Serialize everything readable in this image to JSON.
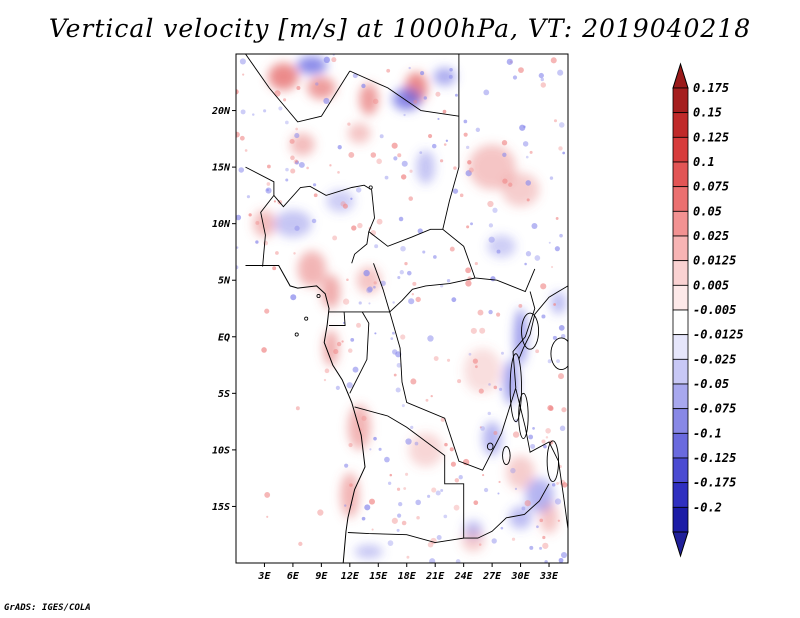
{
  "title": "Vertical velocity [m/s] at 1000hPa, VT: 2019040218",
  "credit": "GrADS: IGES/COLA",
  "map": {
    "lon_range": [
      0,
      35
    ],
    "lat_range": [
      -20,
      25
    ],
    "lon_ticks": [
      {
        "value": 3,
        "label": "3E"
      },
      {
        "value": 6,
        "label": "6E"
      },
      {
        "value": 9,
        "label": "9E"
      },
      {
        "value": 12,
        "label": "12E"
      },
      {
        "value": 15,
        "label": "15E"
      },
      {
        "value": 18,
        "label": "18E"
      },
      {
        "value": 21,
        "label": "21E"
      },
      {
        "value": 24,
        "label": "24E"
      },
      {
        "value": 27,
        "label": "27E"
      },
      {
        "value": 30,
        "label": "30E"
      },
      {
        "value": 33,
        "label": "33E"
      }
    ],
    "lat_ticks": [
      {
        "value": 20,
        "label": "20N"
      },
      {
        "value": 15,
        "label": "15N"
      },
      {
        "value": 10,
        "label": "10N"
      },
      {
        "value": 5,
        "label": "5N"
      },
      {
        "value": 0,
        "label": "EQ"
      },
      {
        "value": -5,
        "label": "5S"
      },
      {
        "value": -10,
        "label": "10S"
      },
      {
        "value": -15,
        "label": "15S"
      }
    ]
  },
  "colorbar": {
    "bins": [
      {
        "label": "0.175",
        "color": "#a51e1e"
      },
      {
        "label": "0.15",
        "color": "#c02a2a"
      },
      {
        "label": "0.125",
        "color": "#d73c3c"
      },
      {
        "label": "0.1",
        "color": "#e25555"
      },
      {
        "label": "0.075",
        "color": "#eb7070"
      },
      {
        "label": "0.05",
        "color": "#f29292"
      },
      {
        "label": "0.025",
        "color": "#f7b4b4"
      },
      {
        "label": "0.0125",
        "color": "#fad2d2"
      },
      {
        "label": "0.005",
        "color": "#fde9e9"
      },
      {
        "label": "-0.005",
        "color": "#ffffff"
      },
      {
        "label": "-0.0125",
        "color": "#e6e6fb"
      },
      {
        "label": "-0.025",
        "color": "#c8c8f5"
      },
      {
        "label": "-0.05",
        "color": "#a8a8ee"
      },
      {
        "label": "-0.075",
        "color": "#8888e6"
      },
      {
        "label": "-0.1",
        "color": "#6a6ade"
      },
      {
        "label": "-0.125",
        "color": "#4b4bd2"
      },
      {
        "label": "-0.175",
        "color": "#3030c0"
      },
      {
        "label": "-0.2",
        "color": "#1c1ca6"
      }
    ],
    "top_triangle_color": "#9a1a1a",
    "bottom_triangle_color": "#20209a"
  },
  "features": {
    "red_patches": [
      [
        5,
        23,
        1.6,
        1.2,
        0.7
      ],
      [
        9,
        22,
        1.5,
        1.0,
        0.6
      ],
      [
        14,
        21,
        1.0,
        1.4,
        0.6
      ],
      [
        19,
        22,
        1.2,
        1.4,
        0.7
      ],
      [
        7,
        17,
        1.3,
        1.0,
        0.4
      ],
      [
        13,
        18,
        1.2,
        0.9,
        0.35
      ],
      [
        27,
        15,
        2.5,
        2.0,
        0.35
      ],
      [
        30,
        13,
        2.0,
        1.5,
        0.3
      ],
      [
        3,
        10,
        1.2,
        1.2,
        0.4
      ],
      [
        8,
        6,
        1.5,
        1.6,
        0.45
      ],
      [
        10,
        4,
        1.0,
        1.5,
        0.5
      ],
      [
        14,
        5,
        1.3,
        1.2,
        0.35
      ],
      [
        10,
        -1,
        0.8,
        1.6,
        0.5
      ],
      [
        13,
        -8,
        1.2,
        2.0,
        0.45
      ],
      [
        12,
        -14,
        1.0,
        2.0,
        0.45
      ],
      [
        20,
        -10,
        1.8,
        1.5,
        0.25
      ],
      [
        26,
        -3,
        2.0,
        2.0,
        0.2
      ],
      [
        30,
        -12,
        1.5,
        1.5,
        0.3
      ],
      [
        33,
        -16,
        1.0,
        1.4,
        0.35
      ],
      [
        25,
        -18,
        1.2,
        1.0,
        0.3
      ]
    ],
    "blue_patches": [
      [
        8,
        24,
        1.6,
        0.8,
        0.7
      ],
      [
        18,
        21,
        1.5,
        1.0,
        0.7
      ],
      [
        22,
        23,
        1.2,
        0.8,
        0.5
      ],
      [
        20,
        15,
        1.0,
        1.5,
        0.35
      ],
      [
        28,
        8,
        1.5,
        1.0,
        0.3
      ],
      [
        6,
        10,
        2.0,
        1.2,
        0.35
      ],
      [
        11,
        12,
        1.5,
        1.0,
        0.3
      ],
      [
        30,
        0,
        0.7,
        2.5,
        0.6
      ],
      [
        29,
        -4,
        0.8,
        2.0,
        0.55
      ],
      [
        27,
        -9,
        1.0,
        1.5,
        0.45
      ],
      [
        32,
        -14,
        1.5,
        1.5,
        0.45
      ],
      [
        30,
        -16,
        1.2,
        1.0,
        0.4
      ],
      [
        14,
        -19,
        1.5,
        0.6,
        0.35
      ],
      [
        25,
        -17,
        1.0,
        0.8,
        0.35
      ],
      [
        34,
        3,
        0.8,
        1.0,
        0.4
      ]
    ],
    "borders": [
      [
        [
          1,
          25
        ],
        [
          3.5,
          22
        ],
        [
          6.5,
          19
        ],
        [
          9,
          19.5
        ],
        [
          12,
          23.5
        ]
      ],
      [
        [
          12,
          23.5
        ],
        [
          16,
          22
        ],
        [
          19.5,
          20
        ],
        [
          23.5,
          19.5
        ]
      ],
      [
        [
          23.5,
          25
        ],
        [
          23.5,
          19.5
        ],
        [
          23.5,
          15
        ],
        [
          22.5,
          12
        ],
        [
          21.8,
          9.5
        ],
        [
          24,
          8
        ],
        [
          25.2,
          5.2
        ],
        [
          27.5,
          5
        ],
        [
          30.5,
          4
        ],
        [
          31.5,
          6
        ]
      ],
      [
        [
          4,
          12.5
        ],
        [
          2.6,
          11
        ],
        [
          3.1,
          9
        ],
        [
          2.8,
          6.2
        ]
      ],
      [
        [
          1,
          15
        ],
        [
          4,
          13.7
        ],
        [
          4,
          12.5
        ],
        [
          5,
          11.5
        ],
        [
          6.8,
          13.2
        ],
        [
          7.8,
          13.3
        ],
        [
          9.5,
          12.5
        ],
        [
          12.2,
          13.2
        ],
        [
          13.5,
          13.4
        ],
        [
          14.3,
          13
        ]
      ],
      [
        [
          14.3,
          13
        ],
        [
          14.6,
          10.5
        ],
        [
          14,
          9.3
        ],
        [
          13.8,
          8.2
        ],
        [
          12.5,
          7.3
        ],
        [
          12.2,
          6.5
        ]
      ],
      [
        [
          14,
          9.3
        ],
        [
          16,
          8
        ],
        [
          18.5,
          8.8
        ],
        [
          20.5,
          9.5
        ],
        [
          21.8,
          9.5
        ]
      ],
      [
        [
          14.5,
          6.5
        ],
        [
          15.5,
          4.2
        ],
        [
          16.2,
          2.2
        ],
        [
          17.5,
          3.2
        ],
        [
          18.6,
          4.2
        ],
        [
          20,
          4.5
        ],
        [
          22.5,
          4.7
        ],
        [
          25.2,
          5.2
        ]
      ],
      [
        [
          9.8,
          2.2
        ],
        [
          11.4,
          2.2
        ],
        [
          13.3,
          2.2
        ],
        [
          16.2,
          2.2
        ]
      ],
      [
        [
          13.3,
          2.2
        ],
        [
          14,
          1.2
        ],
        [
          13.8,
          -2
        ],
        [
          12,
          -5
        ]
      ],
      [
        [
          16.2,
          2.2
        ],
        [
          17.3,
          -1
        ],
        [
          17.5,
          -4
        ],
        [
          18,
          -5.8
        ],
        [
          22,
          -7.2
        ],
        [
          23.5,
          -11
        ],
        [
          26,
          -11.8
        ],
        [
          28,
          -8.5
        ],
        [
          29.5,
          -4.5
        ],
        [
          29.2,
          -1.3
        ],
        [
          30.5,
          0
        ],
        [
          31.5,
          2.5
        ],
        [
          31,
          4
        ]
      ],
      [
        [
          12.5,
          -6.2
        ],
        [
          16,
          -7
        ],
        [
          18,
          -8
        ],
        [
          22,
          -10.5
        ],
        [
          22,
          -13
        ],
        [
          24,
          -13
        ],
        [
          24,
          -17.8
        ],
        [
          21,
          -18.2
        ],
        [
          18,
          -17.5
        ],
        [
          14,
          -17.4
        ],
        [
          11.8,
          -17.3
        ]
      ],
      [
        [
          24,
          -17.8
        ],
        [
          25.5,
          -17.8
        ],
        [
          27,
          -17.2
        ],
        [
          28.5,
          -16
        ],
        [
          30.4,
          -15.7
        ],
        [
          32,
          -14.5
        ],
        [
          33,
          -13
        ]
      ],
      [
        [
          11.4,
          2.2
        ],
        [
          11.5,
          1
        ],
        [
          9.8,
          1
        ]
      ],
      [
        [
          29.8,
          -2
        ],
        [
          30.3,
          -1
        ],
        [
          31,
          0.2
        ],
        [
          31.5,
          2
        ],
        [
          33,
          3.5
        ],
        [
          34,
          4
        ],
        [
          35,
          4.5
        ]
      ],
      [
        [
          29.5,
          -4.6
        ],
        [
          30.5,
          -8
        ],
        [
          31,
          -10.2
        ],
        [
          33,
          -9.3
        ],
        [
          34,
          -11
        ],
        [
          34.6,
          -14.5
        ],
        [
          35,
          -17
        ]
      ]
    ],
    "coastline": [
      [
        1,
        6.3
      ],
      [
        2.5,
        6.3
      ],
      [
        4.5,
        6.3
      ],
      [
        5.7,
        4.5
      ],
      [
        6.5,
        4.3
      ],
      [
        8.5,
        4.5
      ],
      [
        9.4,
        3.8
      ],
      [
        9.8,
        2.5
      ],
      [
        9.6,
        1
      ],
      [
        9.3,
        -0.5
      ],
      [
        10.2,
        -2.5
      ],
      [
        11.2,
        -3.8
      ],
      [
        12.2,
        -5.8
      ],
      [
        13.2,
        -8.7
      ],
      [
        13.6,
        -11.5
      ],
      [
        12.5,
        -13.5
      ],
      [
        11.8,
        -16
      ],
      [
        11.6,
        -17.2
      ],
      [
        11.3,
        -20
      ]
    ],
    "lakes": [
      [
        31,
        0.5,
        0.9,
        1.6
      ],
      [
        29.5,
        -4.5,
        0.6,
        3.0
      ],
      [
        30.3,
        -7.0,
        0.5,
        2.0
      ],
      [
        34.3,
        -1.5,
        1.1,
        1.4
      ],
      [
        33.4,
        -11,
        0.6,
        1.8
      ],
      [
        28.5,
        -10.5,
        0.4,
        0.8
      ],
      [
        26.8,
        -9.7,
        0.3,
        0.3
      ]
    ]
  }
}
